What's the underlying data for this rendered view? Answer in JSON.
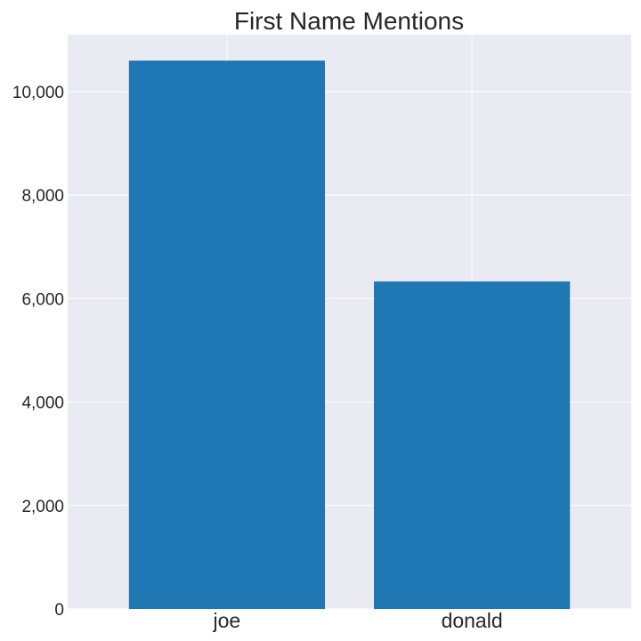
{
  "chart_data": {
    "type": "bar",
    "title": "First Name Mentions",
    "xlabel": "",
    "ylabel": "",
    "categories": [
      "joe",
      "donald"
    ],
    "values": [
      10600,
      6330
    ],
    "ylim": [
      0,
      11100
    ],
    "yticks": [
      0,
      2000,
      4000,
      6000,
      8000,
      10000
    ],
    "ytick_labels": [
      "0",
      "2,000",
      "4,000",
      "6,000",
      "8,000",
      "10,000"
    ],
    "grid": true,
    "legend": "none",
    "colors": {
      "bar": "#1f77b4",
      "plot_background": "#eaeaf2",
      "grid": "#ffffff",
      "text": "#262626"
    }
  }
}
